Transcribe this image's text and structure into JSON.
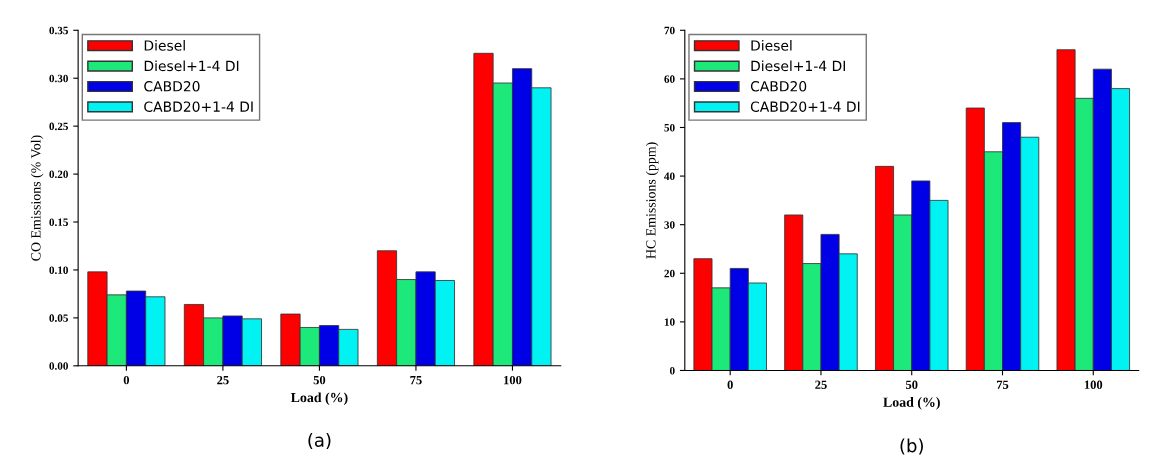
{
  "chart_data": [
    {
      "type": "bar",
      "xlabel": "Load (%)",
      "ylabel": "CO Emissions (% Vol)",
      "categories": [
        "0",
        "25",
        "50",
        "75",
        "100"
      ],
      "series": [
        {
          "name": "Diesel",
          "color": "#ff0000",
          "values": [
            0.098,
            0.064,
            0.054,
            0.12,
            0.326
          ]
        },
        {
          "name": "Diesel+1-4 DI",
          "color": "#1de97a",
          "values": [
            0.074,
            0.05,
            0.04,
            0.09,
            0.295
          ]
        },
        {
          "name": "CABD20",
          "color": "#0000e6",
          "values": [
            0.078,
            0.052,
            0.042,
            0.098,
            0.31
          ]
        },
        {
          "name": "CABD20+1-4 DI",
          "color": "#00f2f2",
          "values": [
            0.072,
            0.049,
            0.038,
            0.089,
            0.29
          ]
        }
      ],
      "ylim": [
        0,
        0.35
      ],
      "yticks": [
        {
          "value": 0,
          "label": "0.00"
        },
        {
          "value": 0.05,
          "label": "0.05"
        },
        {
          "value": 0.1,
          "label": "0.10"
        },
        {
          "value": 0.15,
          "label": "0.15"
        },
        {
          "value": 0.2,
          "label": "0.20"
        },
        {
          "value": 0.25,
          "label": "0.25"
        },
        {
          "value": 0.3,
          "label": "0.30"
        },
        {
          "value": 0.35,
          "label": "0.35"
        }
      ],
      "legend": "top left",
      "grid": false,
      "annotations": [
        "(a)"
      ]
    },
    {
      "type": "bar",
      "xlabel": "Load (%)",
      "ylabel": "HC Emissions (ppm)",
      "categories": [
        "0",
        "25",
        "50",
        "75",
        "100"
      ],
      "series": [
        {
          "name": "Diesel",
          "color": "#ff0000",
          "values": [
            23,
            32,
            42,
            54,
            66
          ]
        },
        {
          "name": "Diesel+1-4 DI",
          "color": "#1de97a",
          "values": [
            17,
            22,
            32,
            45,
            56
          ]
        },
        {
          "name": "CABD20",
          "color": "#0000e6",
          "values": [
            21,
            28,
            39,
            51,
            62
          ]
        },
        {
          "name": "CABD20+1-4 DI",
          "color": "#00f2f2",
          "values": [
            18,
            24,
            35,
            48,
            58
          ]
        }
      ],
      "ylim": [
        0,
        70
      ],
      "yticks": [
        0,
        10,
        20,
        30,
        40,
        50,
        60,
        70
      ],
      "legend": "top left",
      "grid": false,
      "annotations": [
        "(b)"
      ]
    }
  ]
}
